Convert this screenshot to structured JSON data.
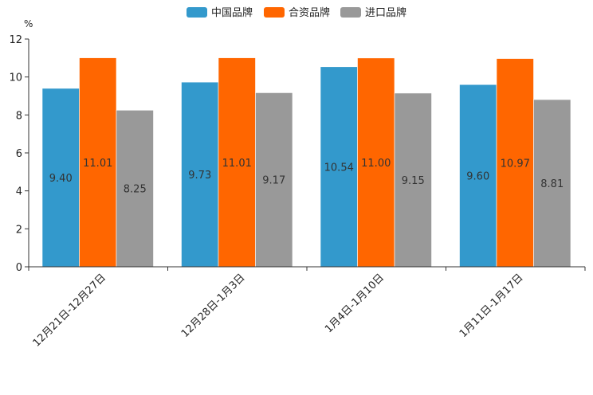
{
  "chart_data": {
    "type": "bar",
    "title": "",
    "xlabel": "",
    "ylabel": "%",
    "ylim": [
      0,
      12
    ],
    "yticks": [
      0,
      2,
      4,
      6,
      8,
      10,
      12
    ],
    "grid": false,
    "legend_position": "top-center",
    "categories": [
      "12月21日-12月27日",
      "12月28日-1月3日",
      "1月4日-1月10日",
      "1月11日-1月17日"
    ],
    "series": [
      {
        "name": "中国品牌",
        "color": "#3399CC",
        "values": [
          9.4,
          9.73,
          10.54,
          9.6
        ]
      },
      {
        "name": "合资品牌",
        "color": "#FF6600",
        "values": [
          11.01,
          11.01,
          11.0,
          10.97
        ]
      },
      {
        "name": "进口品牌",
        "color": "#999999",
        "values": [
          8.25,
          9.17,
          9.15,
          8.81
        ]
      }
    ]
  }
}
